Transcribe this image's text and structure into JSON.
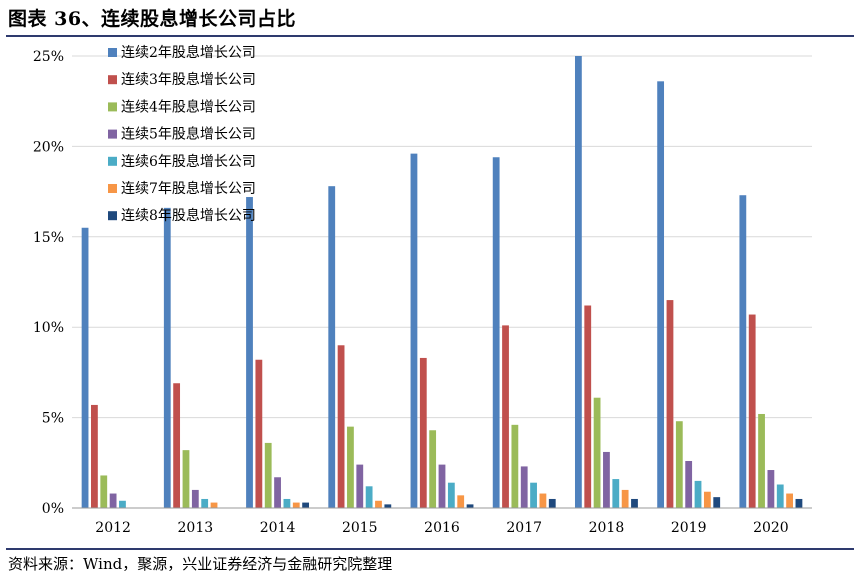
{
  "header": {
    "title": "图表 36、连续股息增长公司占比"
  },
  "footer": {
    "source": "资料来源：Wind，聚源，兴业证券经济与金融研究院整理"
  },
  "chart_data": {
    "type": "bar",
    "title": "图表 36、连续股息增长公司占比",
    "xlabel": "",
    "ylabel": "",
    "ylim": [
      0,
      25
    ],
    "yticks": [
      "0%",
      "5%",
      "10%",
      "15%",
      "20%",
      "25%"
    ],
    "grid": true,
    "legend_position": "top-left",
    "categories": [
      "2012",
      "2013",
      "2014",
      "2015",
      "2016",
      "2017",
      "2018",
      "2019",
      "2020"
    ],
    "series": [
      {
        "name": "连续2年股息增长公司",
        "color": "#4f81bd",
        "values": [
          15.5,
          16.6,
          17.2,
          17.8,
          19.6,
          19.4,
          25.0,
          23.6,
          17.3
        ]
      },
      {
        "name": "连续3年股息增长公司",
        "color": "#c0504d",
        "values": [
          5.7,
          6.9,
          8.2,
          9.0,
          8.3,
          10.1,
          11.2,
          11.5,
          10.7
        ]
      },
      {
        "name": "连续4年股息增长公司",
        "color": "#9bbb59",
        "values": [
          1.8,
          3.2,
          3.6,
          4.5,
          4.3,
          4.6,
          6.1,
          4.8,
          5.2
        ]
      },
      {
        "name": "连续5年股息增长公司",
        "color": "#8064a2",
        "values": [
          0.8,
          1.0,
          1.7,
          2.4,
          2.4,
          2.3,
          3.1,
          2.6,
          2.1
        ]
      },
      {
        "name": "连续6年股息增长公司",
        "color": "#4bacc6",
        "values": [
          0.4,
          0.5,
          0.5,
          1.2,
          1.4,
          1.4,
          1.6,
          1.5,
          1.3
        ]
      },
      {
        "name": "连续7年股息增长公司",
        "color": "#f79646",
        "values": [
          0.0,
          0.3,
          0.3,
          0.4,
          0.7,
          0.8,
          1.0,
          0.9,
          0.8
        ]
      },
      {
        "name": "连续8年股息增长公司",
        "color": "#1f497d",
        "values": [
          0.0,
          0.0,
          0.3,
          0.2,
          0.2,
          0.5,
          0.5,
          0.6,
          0.5
        ]
      }
    ]
  }
}
